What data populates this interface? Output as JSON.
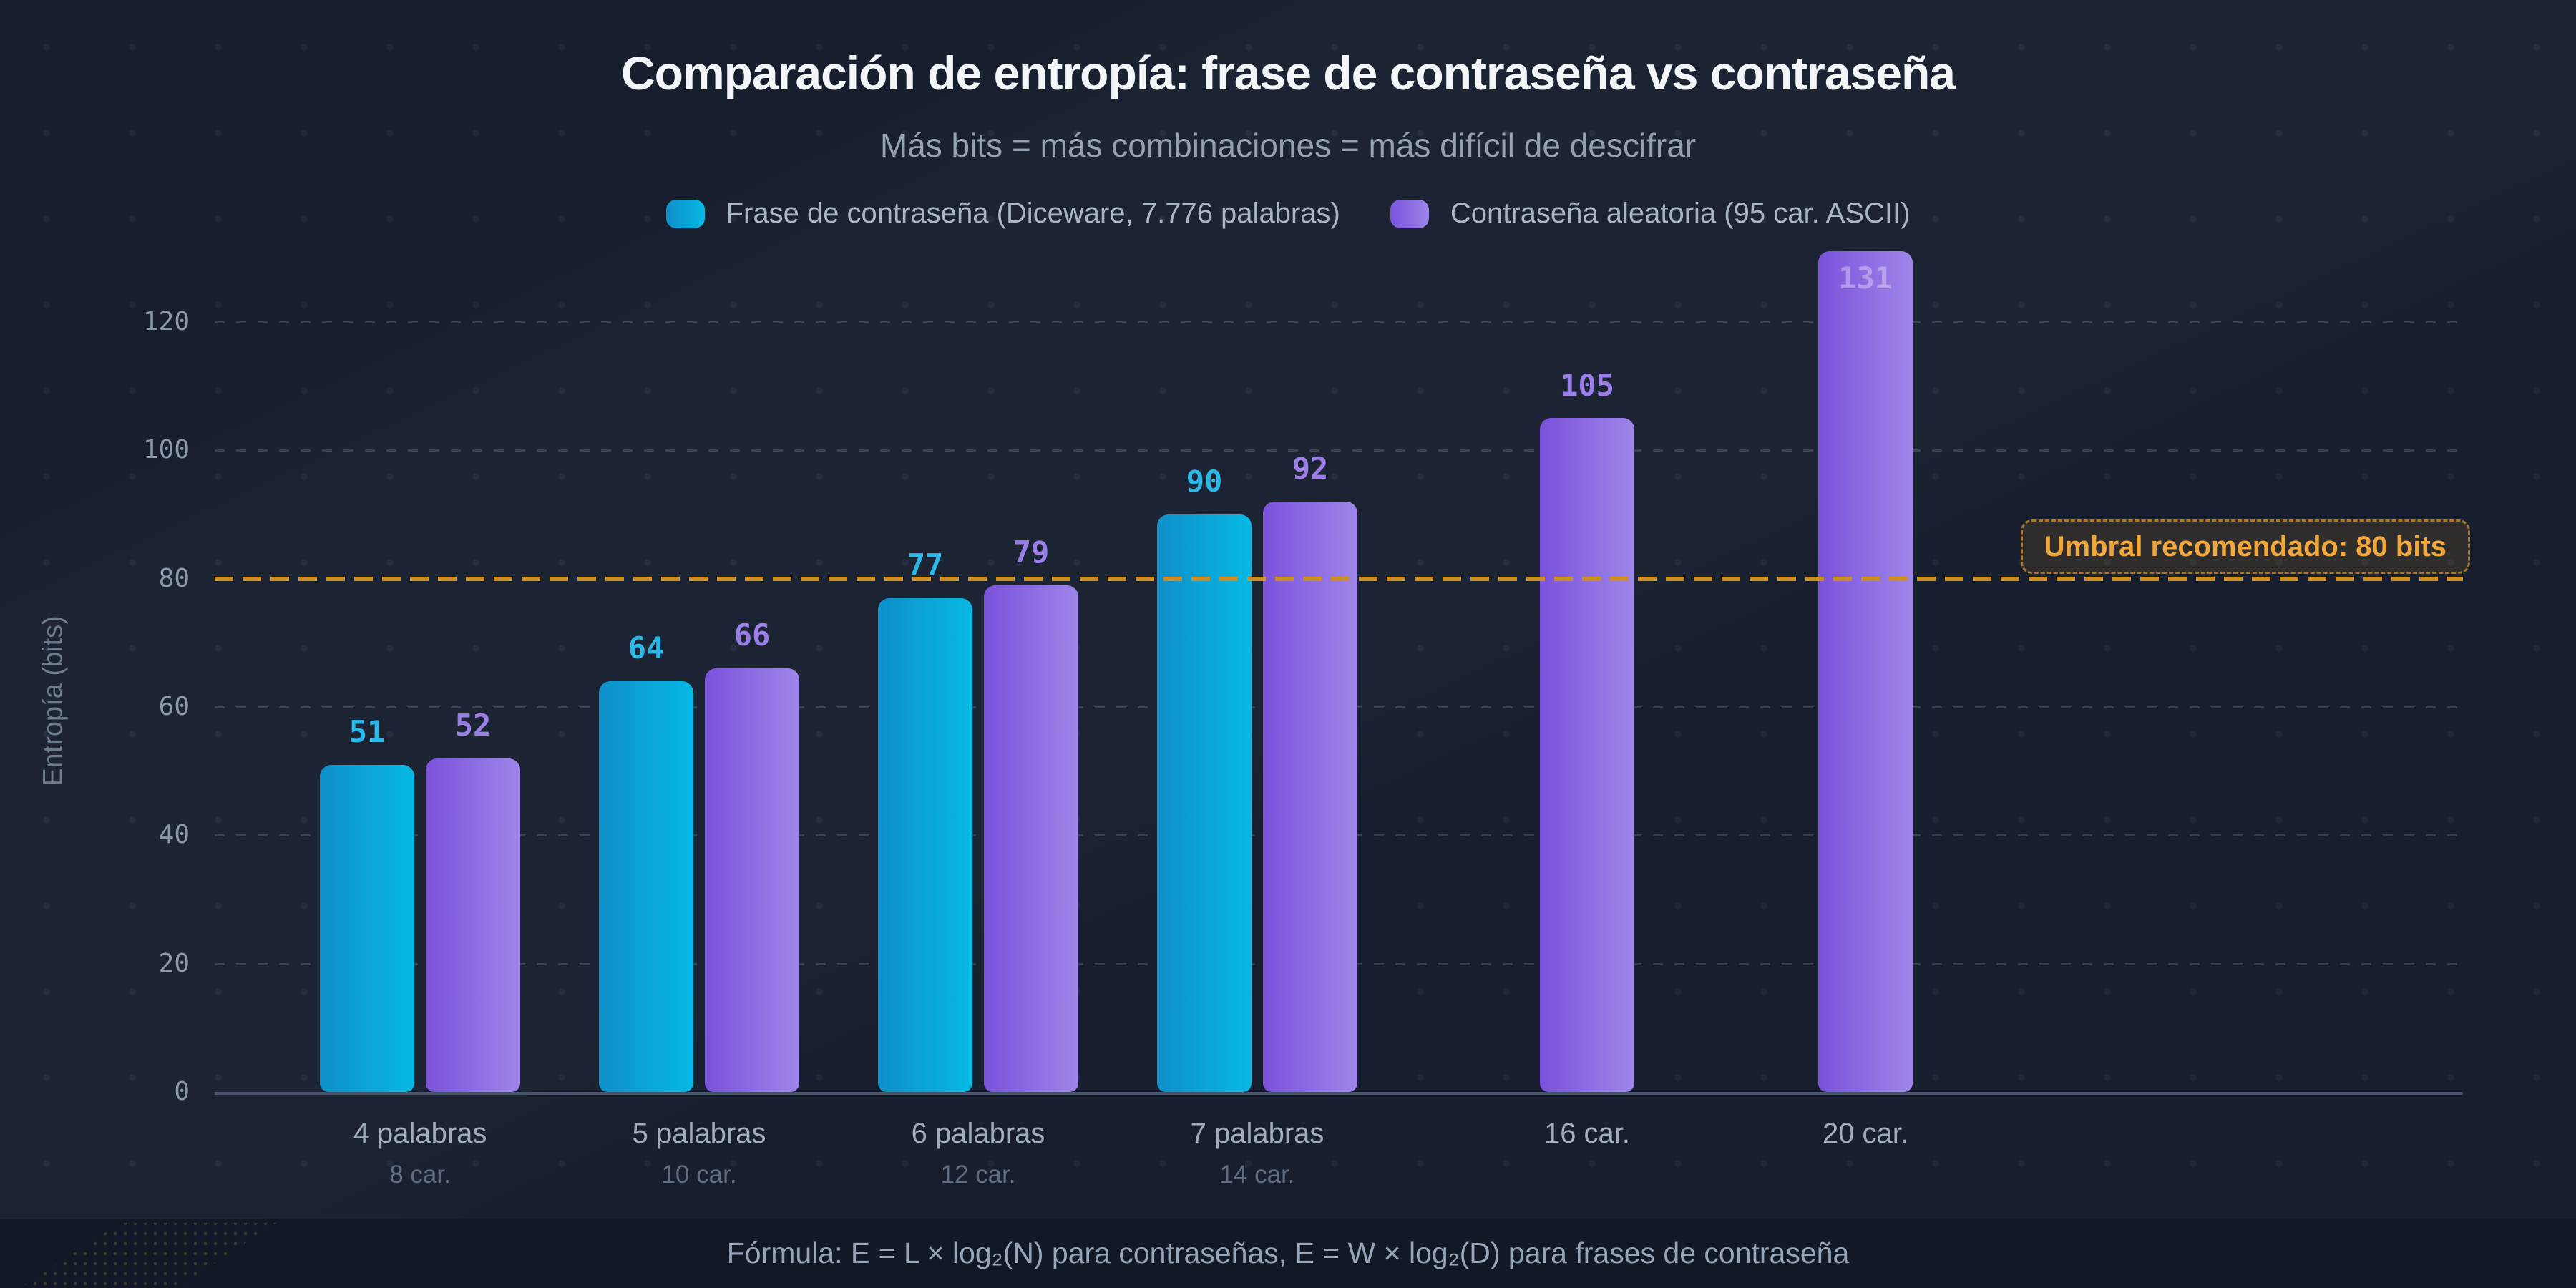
{
  "page": {
    "title": "Comparación de entropía: frase de contraseña vs contraseña",
    "subtitle": "Más bits = más combinaciones = más difícil de descifrar",
    "footer_formula": "Fórmula: E = L × log₂(N) para contraseñas, E = W × log₂(D) para frases de contraseña"
  },
  "colors": {
    "background": "#171f2e",
    "footer_background": "#111927",
    "cyan_start": "#0f8fc9",
    "cyan_end": "#07b9e3",
    "cyan_value_label": "#2cb8e6",
    "purple_start": "#7a52dc",
    "purple_end": "#9e86e9",
    "purple_value_label": "#9a7fe8",
    "threshold_orange": "#cc8f26",
    "threshold_text": "#f2a73b"
  },
  "legend": {
    "items": [
      {
        "id": "passphrase",
        "label": "Frase de contraseña (Diceware, 7.776 palabras)"
      },
      {
        "id": "password",
        "label": "Contraseña aleatoria (95 car. ASCII)"
      }
    ]
  },
  "y_axis": {
    "title": "Entropía (bits)",
    "ticks": [
      0,
      20,
      40,
      60,
      80,
      100,
      120
    ]
  },
  "threshold": {
    "value": 80,
    "label": "Umbral recomendado: 80 bits"
  },
  "chart_data": {
    "type": "bar",
    "title": "Comparación de entropía: frase de contraseña vs contraseña",
    "subtitle": "Más bits = más combinaciones = más difícil de descifrar",
    "xlabel": "",
    "ylabel": "Entropía (bits)",
    "ylim": [
      0,
      135
    ],
    "yticks": [
      0,
      20,
      40,
      60,
      80,
      100,
      120
    ],
    "grid": "dashed-horizontal",
    "legend_position": "top-center",
    "categories": [
      {
        "line1": "4 palabras",
        "line2": "8 car."
      },
      {
        "line1": "5 palabras",
        "line2": "10 car."
      },
      {
        "line1": "6 palabras",
        "line2": "12 car."
      },
      {
        "line1": "7 palabras",
        "line2": "14 car."
      },
      {
        "line1": "16 car.",
        "line2": ""
      },
      {
        "line1": "20 car.",
        "line2": ""
      }
    ],
    "series": [
      {
        "name": "Frase de contraseña (Diceware, 7.776 palabras)",
        "values": [
          51,
          64,
          77,
          90,
          null,
          null
        ]
      },
      {
        "name": "Contraseña aleatoria (95 car. ASCII)",
        "values": [
          52,
          66,
          79,
          92,
          105,
          131
        ]
      }
    ],
    "threshold_line": {
      "value": 80,
      "label": "Umbral recomendado: 80 bits"
    }
  }
}
